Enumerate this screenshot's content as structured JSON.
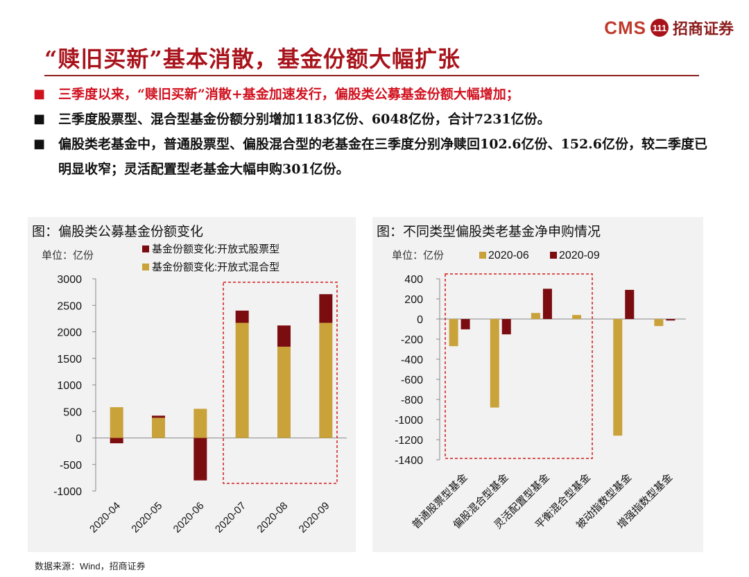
{
  "header": {
    "logo_text": "CMS",
    "logo_badge": "111",
    "logo_cn": "招商证券",
    "title": "“赎旧买新”基本消散，基金份额大幅扩张"
  },
  "bullets": [
    {
      "marker": "■",
      "text": "三季度以来，“赎旧买新”消散+基金加速发行，偏股类公募基金份额大幅增加；",
      "color": "#d0101e"
    },
    {
      "marker": "■",
      "text": "三季度股票型、混合型基金份额分别增加1183亿份、6048亿份，合计7231亿份。",
      "color": "#111111"
    },
    {
      "marker": "■",
      "text": "偏股类老基金中，普通股票型、偏股混合型的老基金在三季度分别净赎回102.6亿份、152.6亿份，较二季度已明显收窄；灵活配置型老基金大幅申购301亿份。",
      "color": "#111111"
    }
  ],
  "left_panel": {
    "title": "图：偏股类公募基金份额变化",
    "unit": "单位：亿份"
  },
  "right_panel": {
    "title": "图：不同类型偏股类老基金净申购情况",
    "unit": "单位：亿份"
  },
  "colors": {
    "dark_red": "#7b0c10",
    "gold": "#c9a23a",
    "dash_red": "#d11a1a",
    "axis": "#888888"
  },
  "chart_data": [
    {
      "type": "bar",
      "stacked": true,
      "title": "图：偏股类公募基金份额变化",
      "categories": [
        "2020-04",
        "2020-05",
        "2020-06",
        "2020-07",
        "2020-08",
        "2020-09"
      ],
      "series": [
        {
          "name": "基金份额变化:开放式股票型",
          "color": "#7b0c10",
          "values": [
            -100,
            40,
            -800,
            230,
            400,
            540
          ]
        },
        {
          "name": "基金份额变化:开放式混合型",
          "color": "#c9a23a",
          "values": [
            580,
            380,
            550,
            2170,
            1720,
            2170
          ]
        }
      ],
      "ylim": [
        -1000,
        3000
      ],
      "yticks": [
        -1000,
        -500,
        0,
        500,
        1000,
        1500,
        2000,
        2500,
        3000
      ],
      "highlight": "2020-07 to 2020-09 (dashed box)"
    },
    {
      "type": "bar",
      "title": "图：不同类型偏股类老基金净申购情况",
      "categories": [
        "普通股票型基金",
        "偏股混合型基金",
        "灵活配置型基金",
        "平衡混合型基金",
        "被动指数型基金",
        "增强指数型基金"
      ],
      "series": [
        {
          "name": "2020-06",
          "color": "#c9a23a",
          "values": [
            -270,
            -880,
            60,
            40,
            -1160,
            -70
          ]
        },
        {
          "name": "2020-09",
          "color": "#7b0c10",
          "values": [
            -102.6,
            -152.6,
            301,
            0,
            290,
            -15
          ]
        }
      ],
      "ylim": [
        -1400,
        400
      ],
      "yticks": [
        -1400,
        -1200,
        -1000,
        -800,
        -600,
        -400,
        -200,
        0,
        200,
        400
      ],
      "highlight": "普通股票型基金 to 平衡混合型基金 (dashed box)"
    }
  ],
  "source": "数据来源：Wind，招商证券"
}
